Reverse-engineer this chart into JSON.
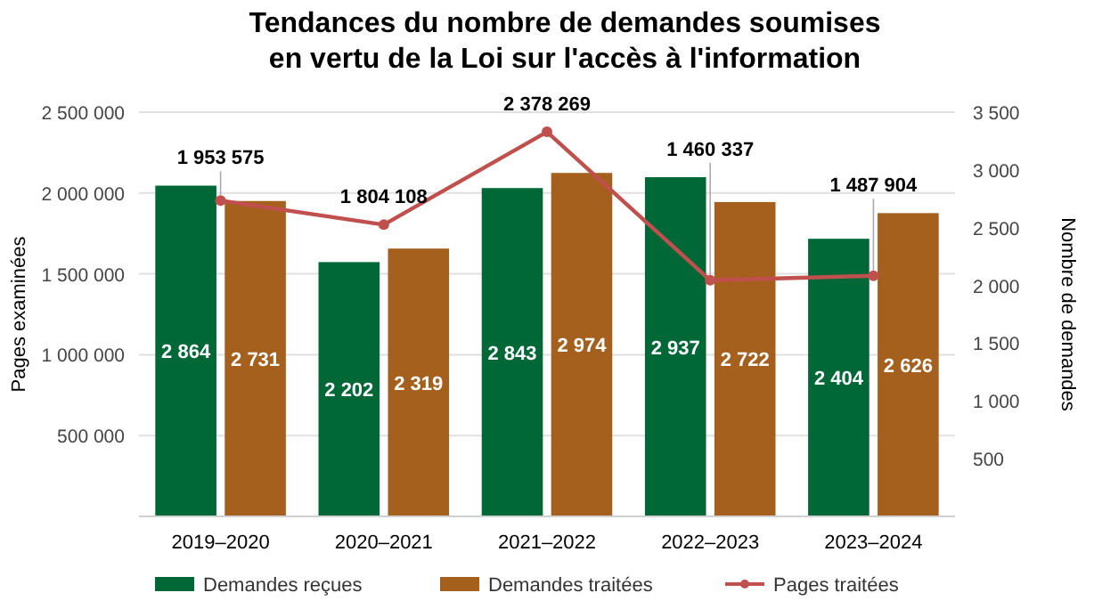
{
  "chart_data": {
    "type": "bar",
    "title": "Tendances du nombre de demandes soumises\nen vertu de la Loi sur l'accès à l'information",
    "categories": [
      "2019–2020",
      "2020–2021",
      "2021–2022",
      "2022–2023",
      "2023–2024"
    ],
    "series": [
      {
        "name": "Demandes reçues",
        "axis": "y2",
        "color": "#006837",
        "values": [
          2864,
          2202,
          2843,
          2937,
          2404
        ],
        "value_labels": [
          "2 864",
          "2 202",
          "2 843",
          "2 937",
          "2 404"
        ]
      },
      {
        "name": "Demandes traitées",
        "axis": "y2",
        "color": "#a5601d",
        "values": [
          2731,
          2319,
          2974,
          2722,
          2626
        ],
        "value_labels": [
          "2 731",
          "2 319",
          "2 974",
          "2 722",
          "2 626"
        ]
      },
      {
        "name": "Pages traitées",
        "type": "line",
        "axis": "y",
        "color": "#c0504d",
        "marker": "circle",
        "values": [
          1953575,
          1804108,
          2378269,
          1460337,
          1487904
        ],
        "value_labels": [
          "1 953 575",
          "1 804 108",
          "2 378 269",
          "1 460 337",
          "1 487 904"
        ]
      }
    ],
    "ylabel": "Pages examinées",
    "y2label": "Nombre de demandes",
    "ylim": [
      0,
      2500000
    ],
    "yticks": [
      {
        "value": 500000,
        "label": "500 000"
      },
      {
        "value": 1000000,
        "label": "1 000 000"
      },
      {
        "value": 1500000,
        "label": "1 500 000"
      },
      {
        "value": 2000000,
        "label": "2 000 000"
      },
      {
        "value": 2500000,
        "label": "2 500 000"
      }
    ],
    "y2lim": [
      0,
      3500
    ],
    "y2ticks": [
      500,
      {
        "value": 1000,
        "label": "1 000"
      },
      {
        "value": 1500,
        "label": "1 500"
      },
      {
        "value": 2000,
        "label": "2 000"
      },
      {
        "value": 2500,
        "label": "2 500"
      },
      {
        "value": 3000,
        "label": "3 000"
      },
      {
        "value": 3500,
        "label": "3 500"
      }
    ],
    "grid": "y",
    "legend": "bottom"
  }
}
